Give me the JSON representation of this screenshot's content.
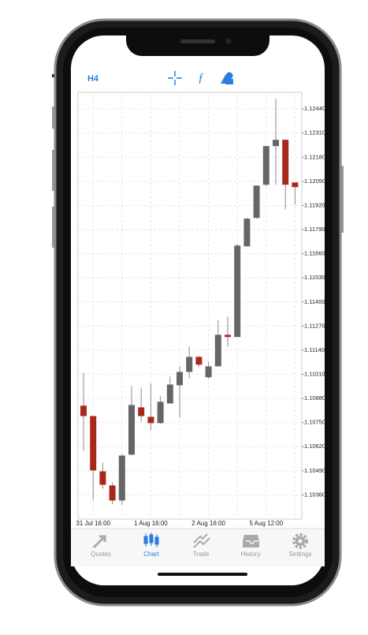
{
  "toolbar": {
    "timeframe": "H4"
  },
  "tabs": [
    "Quotes",
    "Chart",
    "Trade",
    "History",
    "Settings"
  ],
  "chart_data": {
    "type": "candlestick",
    "up_color": "#666666",
    "down_color": "#a8291c",
    "open": [
      1.10841,
      1.10785,
      1.10487,
      1.10411,
      1.1033,
      1.10577,
      1.10832,
      1.10781,
      1.10747,
      1.10853,
      1.10951,
      1.11023,
      1.11104,
      1.10994,
      1.11053,
      1.11223,
      1.11211,
      1.117,
      1.11853,
      1.12032,
      1.1224,
      1.12274,
      1.12044
    ],
    "high": [
      1.11019,
      1.10785,
      1.10534,
      1.10428,
      1.10581,
      1.10947,
      1.10938,
      1.1096,
      1.10892,
      1.10998,
      1.11053,
      1.1116,
      1.11109,
      1.11079,
      1.11304,
      1.11321,
      1.11713,
      1.11853,
      1.12027,
      1.1224,
      1.12495,
      1.12274,
      1.12044
    ],
    "low": [
      1.10598,
      1.10334,
      1.10394,
      1.10309,
      1.10309,
      1.10572,
      1.10755,
      1.10709,
      1.10743,
      1.10853,
      1.10777,
      1.10989,
      1.11049,
      1.10985,
      1.11053,
      1.1116,
      1.11211,
      1.117,
      1.11849,
      1.12023,
      1.12032,
      1.119,
      1.11925
    ],
    "close": [
      1.10785,
      1.10492,
      1.10415,
      1.1033,
      1.10572,
      1.10845,
      1.10785,
      1.10747,
      1.10862,
      1.10955,
      1.11023,
      1.11104,
      1.11062,
      1.11053,
      1.11223,
      1.11211,
      1.11704,
      1.11849,
      1.12027,
      1.1224,
      1.12274,
      1.12032,
      1.12019
    ],
    "ylim": [
      1.1023,
      1.1253
    ],
    "yticks": [
      {
        "value": 1.1036,
        "label": "1.10360"
      },
      {
        "value": 1.1049,
        "label": "1.10490"
      },
      {
        "value": 1.1062,
        "label": "1.10620"
      },
      {
        "value": 1.1075,
        "label": "1.10750"
      },
      {
        "value": 1.1088,
        "label": "1.10880"
      },
      {
        "value": 1.1101,
        "label": "1.11010"
      },
      {
        "value": 1.1114,
        "label": "1.11140"
      },
      {
        "value": 1.1127,
        "label": "1.11270"
      },
      {
        "value": 1.114,
        "label": "1.11400"
      },
      {
        "value": 1.1153,
        "label": "1.11530"
      },
      {
        "value": 1.1166,
        "label": "1.11660"
      },
      {
        "value": 1.1179,
        "label": "1.11790"
      },
      {
        "value": 1.1192,
        "label": "1.11920"
      },
      {
        "value": 1.1205,
        "label": "1.12050"
      },
      {
        "value": 1.1218,
        "label": "1.12180"
      },
      {
        "value": 1.1231,
        "label": "1.12310"
      },
      {
        "value": 1.1244,
        "label": "1.12440"
      }
    ],
    "x_labels": [
      "31 Jul 16:00",
      "1 Aug 16:00",
      "2 Aug 16:00",
      "5 Aug 12:00"
    ],
    "grid": true
  }
}
